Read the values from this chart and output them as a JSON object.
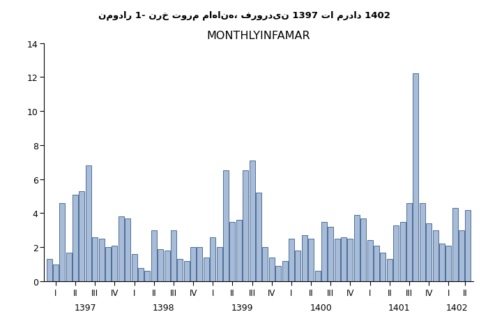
{
  "title_persian": "نمودار 1- نرخ تورم ماهانه، فروردین 1397 تا مرداد 1402",
  "title_english": "MONTHLYINFAMAR",
  "bar_color": "#a8bcd8",
  "bar_edge_color": "#4a6e9a",
  "ylim": [
    0,
    14
  ],
  "yticks": [
    0,
    2,
    4,
    6,
    8,
    10,
    12,
    14
  ],
  "values": [
    1.3,
    1.0,
    4.6,
    1.7,
    5.1,
    5.3,
    6.8,
    2.6,
    2.5,
    2.0,
    2.1,
    3.8,
    3.7,
    1.6,
    0.8,
    0.6,
    3.0,
    1.9,
    1.8,
    3.0,
    1.3,
    1.2,
    2.0,
    2.0,
    1.4,
    2.6,
    2.0,
    6.5,
    3.5,
    3.6,
    6.5,
    7.1,
    5.2,
    2.0,
    1.4,
    0.9,
    1.2,
    2.5,
    1.8,
    2.7,
    2.5,
    0.6,
    3.5,
    3.2,
    2.5,
    2.6,
    2.5,
    3.9,
    3.7,
    2.4,
    2.1,
    1.7,
    1.3,
    3.3,
    3.5,
    4.6,
    12.2,
    4.6,
    3.4,
    3.0,
    2.2,
    2.1,
    4.3,
    3.0,
    4.2
  ],
  "quarters": [
    "I",
    "II",
    "III",
    "IV",
    "I",
    "II",
    "III",
    "IV",
    "I",
    "II",
    "III",
    "IV",
    "I",
    "II",
    "III",
    "IV",
    "I",
    "II",
    "III",
    "IV",
    "I",
    "II"
  ],
  "years": [
    "1397",
    "1398",
    "1399",
    "1400",
    "1401",
    "1402"
  ],
  "year_quarter_starts": [
    0,
    4,
    8,
    12,
    16,
    20
  ],
  "bars_per_quarter": 3,
  "last_quarter_bars": 2
}
